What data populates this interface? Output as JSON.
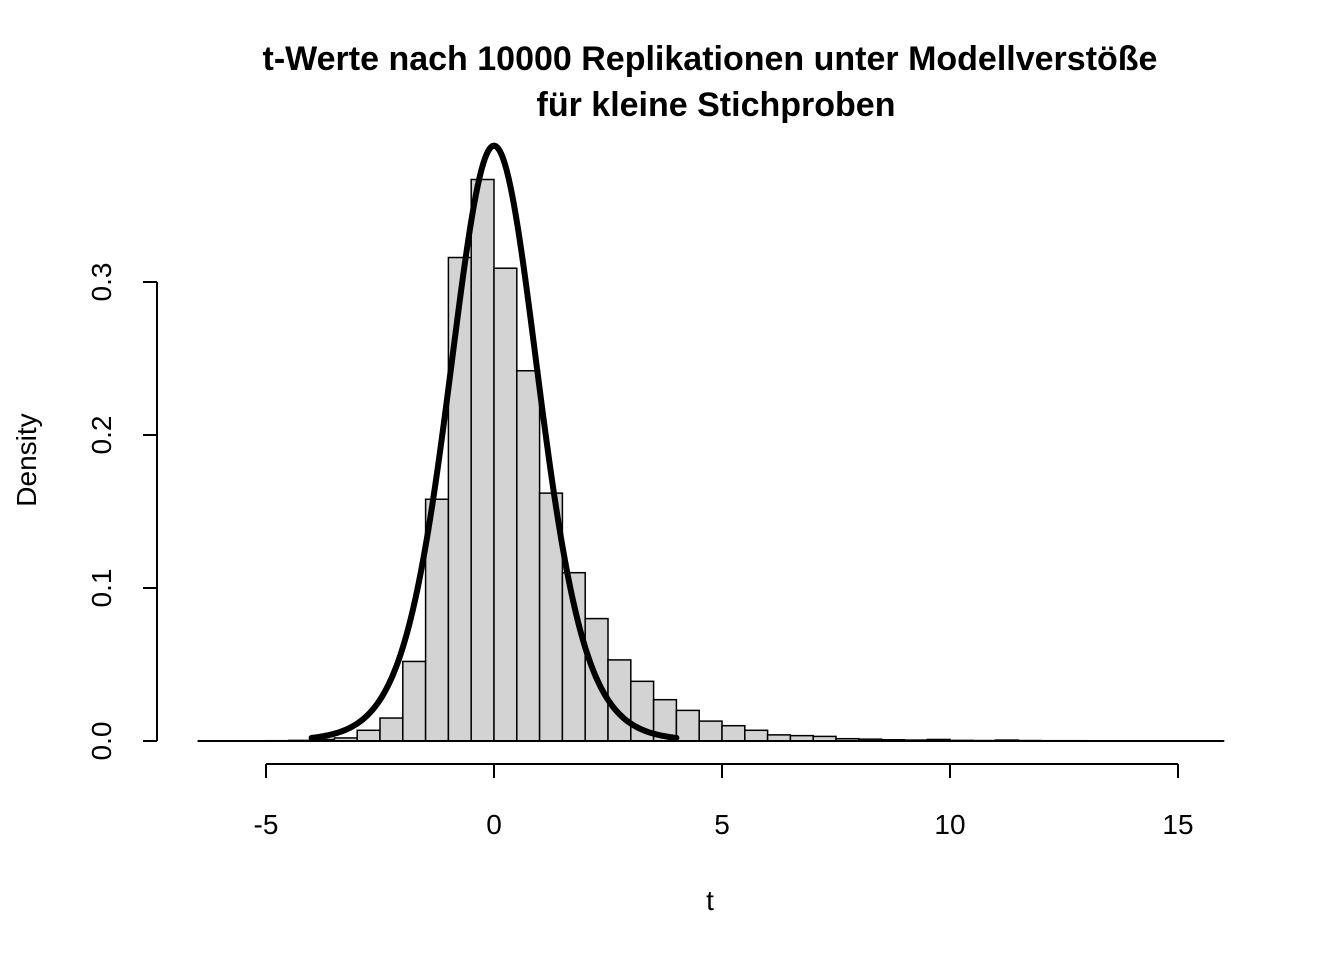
{
  "chart_data": {
    "type": "histogram",
    "title_line1": "t-Werte nach 10000 Replikationen unter Modellverstöße",
    "title_line2": "für kleine Stichproben",
    "xlabel": "t",
    "ylabel": "Density",
    "xlim": [
      -6.5,
      16
    ],
    "ylim": [
      0,
      0.38
    ],
    "x_ticks": [
      -5,
      0,
      5,
      10,
      15
    ],
    "x_tick_labels": [
      "-5",
      "0",
      "5",
      "10",
      "15"
    ],
    "y_ticks": [
      0.0,
      0.1,
      0.2,
      0.3
    ],
    "y_tick_labels": [
      "0.0",
      "0.1",
      "0.2",
      "0.3"
    ],
    "bin_width": 0.5,
    "bins": [
      {
        "x0": -5.0,
        "density": 0.0002
      },
      {
        "x0": -4.5,
        "density": 0.0004
      },
      {
        "x0": -4.0,
        "density": 0.001
      },
      {
        "x0": -3.5,
        "density": 0.002
      },
      {
        "x0": -3.0,
        "density": 0.007
      },
      {
        "x0": -2.5,
        "density": 0.015
      },
      {
        "x0": -2.0,
        "density": 0.052
      },
      {
        "x0": -1.5,
        "density": 0.158
      },
      {
        "x0": -1.0,
        "density": 0.316
      },
      {
        "x0": -0.5,
        "density": 0.367
      },
      {
        "x0": 0.0,
        "density": 0.309
      },
      {
        "x0": 0.5,
        "density": 0.242
      },
      {
        "x0": 1.0,
        "density": 0.162
      },
      {
        "x0": 1.5,
        "density": 0.11
      },
      {
        "x0": 2.0,
        "density": 0.08
      },
      {
        "x0": 2.5,
        "density": 0.053
      },
      {
        "x0": 3.0,
        "density": 0.039
      },
      {
        "x0": 3.5,
        "density": 0.027
      },
      {
        "x0": 4.0,
        "density": 0.02
      },
      {
        "x0": 4.5,
        "density": 0.013
      },
      {
        "x0": 5.0,
        "density": 0.01
      },
      {
        "x0": 5.5,
        "density": 0.007
      },
      {
        "x0": 6.0,
        "density": 0.004
      },
      {
        "x0": 6.5,
        "density": 0.0035
      },
      {
        "x0": 7.0,
        "density": 0.003
      },
      {
        "x0": 7.5,
        "density": 0.0015
      },
      {
        "x0": 8.0,
        "density": 0.0012
      },
      {
        "x0": 8.5,
        "density": 0.0008
      },
      {
        "x0": 9.0,
        "density": 0.0006
      },
      {
        "x0": 9.5,
        "density": 0.001
      },
      {
        "x0": 10.0,
        "density": 0.0004
      },
      {
        "x0": 10.5,
        "density": 0.0003
      },
      {
        "x0": 11.0,
        "density": 0.0006
      },
      {
        "x0": 11.5,
        "density": 0.0003
      },
      {
        "x0": 12.0,
        "density": 0.0002
      },
      {
        "x0": 12.5,
        "density": 0.0002
      },
      {
        "x0": 13.0,
        "density": 0.0001
      },
      {
        "x0": 13.5,
        "density": 0.0001
      },
      {
        "x0": 14.0,
        "density": 0.0001
      },
      {
        "x0": 14.5,
        "density": 0.0001
      },
      {
        "x0": 15.0,
        "density": 0.0001
      },
      {
        "x0": 15.5,
        "density": 0.0001
      }
    ],
    "bar_fill": "#d3d3d3",
    "bar_stroke": "#000000",
    "curve": {
      "type": "density-curve",
      "df": 10,
      "x_range": [
        -4,
        4
      ],
      "color": "#000000"
    }
  }
}
